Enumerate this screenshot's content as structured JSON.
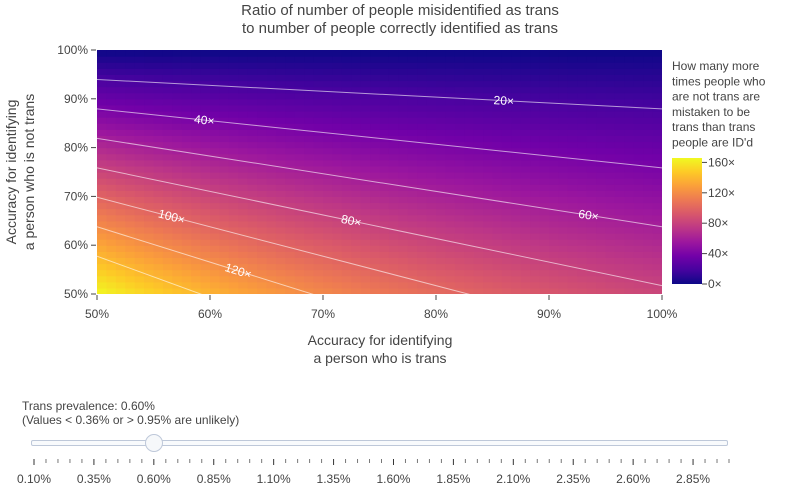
{
  "chart_data": {
    "type": "heatmap",
    "title_line1": "Ratio of number of people misidentified as trans",
    "title_line2": "to number of people correctly identified as trans",
    "xlabel_line1": "Accuracy for identifying",
    "xlabel_line2": "a person who is trans",
    "ylabel_line1": "Accuracy for identifying",
    "ylabel_line2": "a person who is not trans",
    "xlim": [
      0.5,
      1.0
    ],
    "ylim": [
      0.5,
      1.0
    ],
    "x_ticks": [
      0.5,
      0.6,
      0.7,
      0.8,
      0.9,
      1.0
    ],
    "x_tick_labels": [
      "50%",
      "60%",
      "70%",
      "80%",
      "90%",
      "100%"
    ],
    "y_ticks": [
      0.5,
      0.6,
      0.7,
      0.8,
      0.9,
      1.0
    ],
    "y_tick_labels": [
      "50%",
      "60%",
      "70%",
      "80%",
      "90%",
      "100%"
    ],
    "prevalence": 0.006,
    "z_formula": "(1 - y) * (1 - prevalence) / (x * prevalence)",
    "colorscale": "plasma",
    "zmin": 0,
    "zmax": 165.8,
    "colorbar_title": [
      "How many more",
      "times people who",
      "are not trans are",
      "mistaken to be",
      "trans than trans",
      "people are ID'd"
    ],
    "colorbar_ticks": [
      0,
      40,
      80,
      120,
      160
    ],
    "colorbar_tick_labels": [
      "0×",
      "40×",
      "80×",
      "120×",
      "160×"
    ],
    "contour_levels": [
      20,
      40,
      60,
      80,
      100,
      120,
      140
    ],
    "contour_labels": [
      {
        "text": "20×",
        "level": 20,
        "x": 0.86
      },
      {
        "text": "40×",
        "level": 40,
        "x": 0.595
      },
      {
        "text": "60×",
        "level": 60,
        "x": 0.935
      },
      {
        "text": "80×",
        "level": 80,
        "x": 0.725
      },
      {
        "text": "100×",
        "level": 100,
        "x": 0.566
      },
      {
        "text": "120×",
        "level": 120,
        "x": 0.625
      }
    ]
  },
  "slider": {
    "label": "Trans prevalence: 0.60%",
    "note": "(Values < 0.36% or > 0.95% are unlikely)",
    "min": 0.1,
    "max": 3.0,
    "step": 0.05,
    "value": 0.6,
    "tick_labels": [
      "0.10%",
      "0.35%",
      "0.60%",
      "0.85%",
      "1.10%",
      "1.35%",
      "1.60%",
      "1.85%",
      "2.10%",
      "2.35%",
      "2.60%",
      "2.85%"
    ],
    "major_tick_values": [
      0.1,
      0.35,
      0.6,
      0.85,
      1.1,
      1.35,
      1.6,
      1.85,
      2.1,
      2.35,
      2.6,
      2.85
    ]
  }
}
